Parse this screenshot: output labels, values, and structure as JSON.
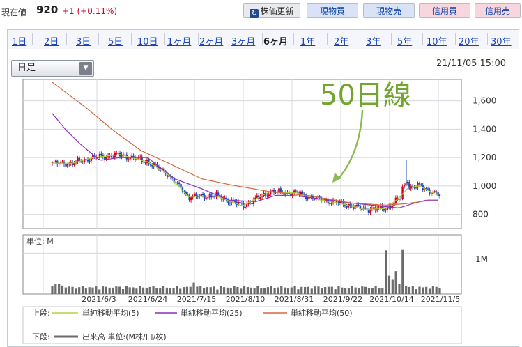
{
  "header": {
    "price_label": "現在値",
    "price_value": "920",
    "price_change": "+1 (+0.11%)",
    "buttons": [
      {
        "label": "株価更新",
        "icon": "refresh-icon"
      },
      {
        "label": "現物買"
      },
      {
        "label": "現物売"
      },
      {
        "label": "信用買"
      },
      {
        "label": "信用売"
      }
    ]
  },
  "tabs": [
    "1日",
    "2日",
    "3日",
    "5日",
    "10日",
    "1ヶ月",
    "2ヶ月",
    "3ヶ月",
    "6ヶ月",
    "1年",
    "2年",
    "3年",
    "5年",
    "10年",
    "20年",
    "30年"
  ],
  "active_tab": "6ヶ月",
  "period_select": {
    "value": "日足"
  },
  "datetime": "21/11/05 15:00",
  "annotation": "50日線",
  "colors": {
    "up": "#d0021b",
    "down": "#1b4fb3",
    "ma5": "#b6d23c",
    "ma25": "#8a2fc2",
    "ma50": "#d2693f",
    "volume": "#6b6b6b",
    "annotation": "#74a52e"
  },
  "chart_data": [
    {
      "type": "candlestick",
      "y_ticks": [
        800,
        1000,
        1200,
        1400,
        1600
      ],
      "y_tick_labels": [
        "800",
        "1,000",
        "1,200",
        "1,400",
        "1,600"
      ],
      "ylim": [
        700,
        1750
      ],
      "x_labels": [
        "2021/6/3",
        "2021/6/24",
        "2021/7/15",
        "2021/8/10",
        "2021/8/31",
        "2021/9/22",
        "2021/10/14",
        "2021/11/5"
      ],
      "grid": true,
      "ma_series": [
        {
          "name": "単純移動平均(5)",
          "x": [
            0,
            15,
            30,
            50,
            70,
            84,
            100,
            120,
            140,
            160,
            180,
            195,
            210,
            230,
            245,
            255,
            262,
            270,
            285
          ],
          "y": [
            1160,
            1160,
            1200,
            1220,
            1170,
            1090,
            925,
            930,
            860,
            960,
            950,
            905,
            880,
            835,
            840,
            915,
            990,
            1000,
            925
          ]
        },
        {
          "name": "単純移動平均(25)",
          "x": [
            0,
            10,
            20,
            35,
            50,
            70,
            90,
            110,
            130,
            150,
            165,
            180,
            200,
            220,
            240,
            255,
            265,
            275,
            285
          ],
          "y": [
            1510,
            1395,
            1300,
            1180,
            1200,
            1200,
            1050,
            980,
            900,
            890,
            935,
            930,
            905,
            880,
            860,
            845,
            875,
            900,
            900
          ]
        },
        {
          "name": "単純移動平均(50)",
          "x": [
            0,
            25,
            45,
            65,
            90,
            110,
            130,
            160,
            190,
            220,
            245,
            260,
            275,
            285
          ],
          "y": [
            1730,
            1550,
            1390,
            1250,
            1140,
            1050,
            1010,
            960,
            930,
            880,
            865,
            875,
            895,
            895
          ]
        }
      ],
      "legend": {
        "upper_label": "上段:",
        "lower_label": "下段:",
        "volume_label": "出来高 単位:(M株/口/枚)"
      }
    },
    {
      "type": "bar",
      "title": "単位: M",
      "y_ticks": [
        1
      ],
      "y_tick_labels": [
        "1M"
      ],
      "ylim": [
        0,
        1.45
      ]
    }
  ]
}
